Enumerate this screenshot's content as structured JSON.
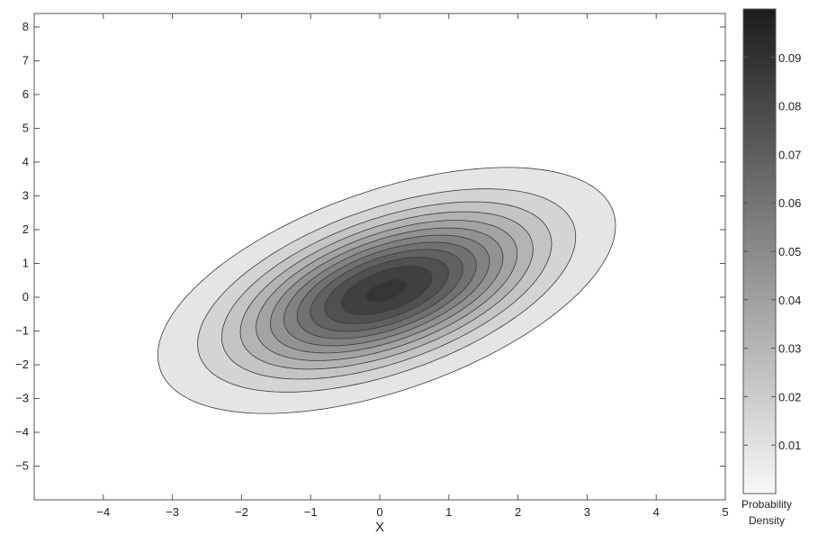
{
  "chart_data": {
    "type": "contour",
    "title": "",
    "xlabel": "X",
    "ylabel": "",
    "xlim": [
      -5,
      5
    ],
    "ylim": [
      -6,
      8.4
    ],
    "x_ticks": [
      -4,
      -3,
      -2,
      -1,
      0,
      1,
      2,
      3,
      4,
      5
    ],
    "y_ticks": [
      -5,
      -4,
      -3,
      -2,
      -1,
      0,
      1,
      2,
      3,
      4,
      5,
      6,
      7,
      8
    ],
    "grid": false,
    "distribution": {
      "kind": "bivariate normal",
      "mean": [
        0.1,
        0.2
      ],
      "cov": [
        [
          1.9,
          1.1
        ],
        [
          1.1,
          2.3
        ]
      ]
    },
    "contour_levels": [
      0.005,
      0.0125,
      0.02,
      0.0275,
      0.035,
      0.0425,
      0.05,
      0.0575,
      0.065,
      0.0725,
      0.08,
      0.0875
    ],
    "colorbar": {
      "label_line1": "Probability",
      "label_line2": "Density",
      "range": [
        0,
        0.1
      ],
      "ticks": [
        0.01,
        0.02,
        0.03,
        0.04,
        0.05,
        0.06,
        0.07,
        0.08,
        0.09
      ],
      "tick_labels": [
        "0.01",
        "0.02",
        "0.03",
        "0.04",
        "0.05",
        "0.06",
        "0.07",
        "0.08",
        "0.09"
      ],
      "color_low": "#f8f8f8",
      "color_high": "#1c1c1c"
    }
  }
}
